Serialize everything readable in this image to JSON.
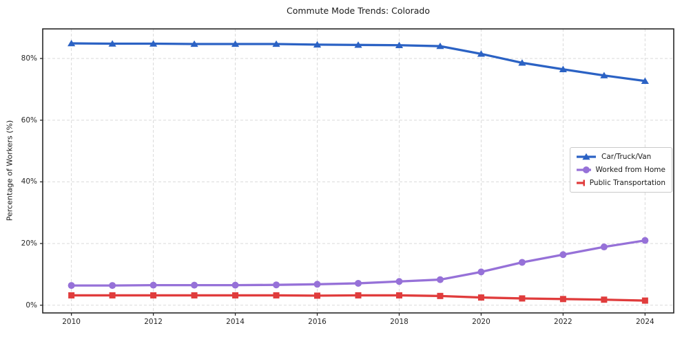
{
  "chart_data": {
    "type": "line",
    "title": "Commute Mode Trends: Colorado",
    "xlabel": "",
    "ylabel": "Percentage of Workers (%)",
    "x": [
      2010,
      2011,
      2012,
      2013,
      2014,
      2015,
      2016,
      2017,
      2018,
      2019,
      2020,
      2021,
      2022,
      2023,
      2024
    ],
    "series": [
      {
        "name": "Car/Truck/Van",
        "color": "#2b62c4",
        "marker": "triangle",
        "values": [
          84.9,
          84.8,
          84.8,
          84.7,
          84.7,
          84.7,
          84.5,
          84.4,
          84.3,
          84.0,
          81.5,
          78.6,
          76.5,
          74.5,
          72.7
        ]
      },
      {
        "name": "Worked from Home",
        "color": "#9671d8",
        "marker": "circle",
        "values": [
          6.4,
          6.4,
          6.5,
          6.5,
          6.5,
          6.6,
          6.8,
          7.1,
          7.7,
          8.3,
          10.8,
          13.9,
          16.4,
          18.9,
          21.0
        ]
      },
      {
        "name": "Public Transportation",
        "color": "#e03c3c",
        "marker": "square",
        "values": [
          3.2,
          3.2,
          3.2,
          3.2,
          3.2,
          3.2,
          3.1,
          3.2,
          3.2,
          3.0,
          2.5,
          2.2,
          2.0,
          1.8,
          1.5
        ]
      }
    ],
    "xlim": [
      2009.3,
      2024.7
    ],
    "ylim": [
      -2.5,
      89.6
    ],
    "xticks": {
      "values": [
        2010,
        2012,
        2014,
        2016,
        2018,
        2020,
        2022,
        2024
      ],
      "labels": [
        "2010",
        "2012",
        "2014",
        "2016",
        "2018",
        "2020",
        "2022",
        "2024"
      ]
    },
    "yticks": {
      "values": [
        0,
        20,
        40,
        60,
        80
      ],
      "labels": [
        "0%",
        "20%",
        "40%",
        "60%",
        "80%"
      ]
    },
    "grid": true,
    "grid_color": "#d9d9d9",
    "spine_color": "#262626",
    "legend_position": "center right"
  }
}
